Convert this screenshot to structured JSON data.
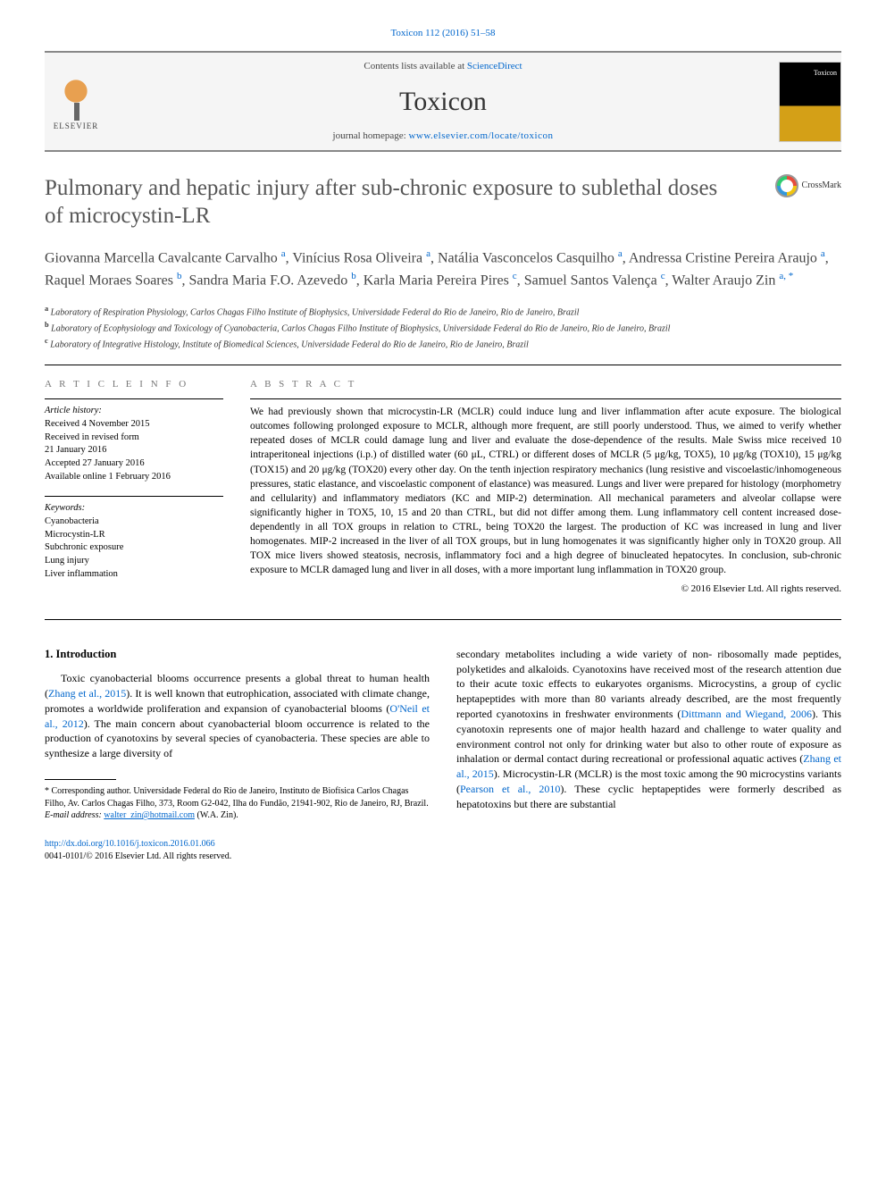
{
  "header_ref": "Toxicon 112 (2016) 51–58",
  "banner": {
    "contents_text": "Contents lists available at ",
    "contents_link": "ScienceDirect",
    "journal_name": "Toxicon",
    "homepage_text": "journal homepage: ",
    "homepage_link": "www.elsevier.com/locate/toxicon",
    "elsevier_label": "ELSEVIER"
  },
  "title": "Pulmonary and hepatic injury after sub-chronic exposure to sublethal doses of microcystin-LR",
  "crossmark_label": "CrossMark",
  "authors_html": "Giovanna Marcella Cavalcante Carvalho <sup>a</sup>, Vinícius Rosa Oliveira <sup>a</sup>, Natália Vasconcelos Casquilho <sup>a</sup>, Andressa Cristine Pereira Araujo <sup>a</sup>, Raquel Moraes Soares <sup>b</sup>, Sandra Maria F.O. Azevedo <sup>b</sup>, Karla Maria Pereira Pires <sup>c</sup>, Samuel Santos Valença <sup>c</sup>, Walter Araujo Zin <sup>a, *</sup>",
  "affiliations": {
    "a": "Laboratory of Respiration Physiology, Carlos Chagas Filho Institute of Biophysics, Universidade Federal do Rio de Janeiro, Rio de Janeiro, Brazil",
    "b": "Laboratory of Ecophysiology and Toxicology of Cyanobacteria, Carlos Chagas Filho Institute of Biophysics, Universidade Federal do Rio de Janeiro, Rio de Janeiro, Brazil",
    "c": "Laboratory of Integrative Histology, Institute of Biomedical Sciences, Universidade Federal do Rio de Janeiro, Rio de Janeiro, Brazil"
  },
  "info": {
    "heading": "A R T I C L E  I N F O",
    "history_label": "Article history:",
    "received": "Received 4 November 2015",
    "revised1": "Received in revised form",
    "revised2": "21 January 2016",
    "accepted": "Accepted 27 January 2016",
    "online": "Available online 1 February 2016",
    "kw_label": "Keywords:",
    "keywords": [
      "Cyanobacteria",
      "Microcystin-LR",
      "Subchronic exposure",
      "Lung injury",
      "Liver inflammation"
    ]
  },
  "abstract": {
    "heading": "A B S T R A C T",
    "text": "We had previously shown that microcystin-LR (MCLR) could induce lung and liver inflammation after acute exposure. The biological outcomes following prolonged exposure to MCLR, although more frequent, are still poorly understood. Thus, we aimed to verify whether repeated doses of MCLR could damage lung and liver and evaluate the dose-dependence of the results. Male Swiss mice received 10 intraperitoneal injections (i.p.) of distilled water (60 μL, CTRL) or different doses of MCLR (5 μg/kg, TOX5), 10 μg/kg (TOX10), 15 μg/kg (TOX15) and 20 μg/kg (TOX20) every other day. On the tenth injection respiratory mechanics (lung resistive and viscoelastic/inhomogeneous pressures, static elastance, and viscoelastic component of elastance) was measured. Lungs and liver were prepared for histology (morphometry and cellularity) and inflammatory mediators (KC and MIP-2) determination. All mechanical parameters and alveolar collapse were significantly higher in TOX5, 10, 15 and 20 than CTRL, but did not differ among them. Lung inflammatory cell content increased dose-dependently in all TOX groups in relation to CTRL, being TOX20 the largest. The production of KC was increased in lung and liver homogenates. MIP-2 increased in the liver of all TOX groups, but in lung homogenates it was significantly higher only in TOX20 group. All TOX mice livers showed steatosis, necrosis, inflammatory foci and a high degree of binucleated hepatocytes. In conclusion, sub-chronic exposure to MCLR damaged lung and liver in all doses, with a more important lung inflammation in TOX20 group.",
    "copyright": "© 2016 Elsevier Ltd. All rights reserved."
  },
  "body": {
    "section_heading": "1. Introduction",
    "para1_a": "Toxic cyanobacterial blooms occurrence presents a global threat to human health (",
    "cite1": "Zhang et al., 2015",
    "para1_b": "). It is well known that eutrophication, associated with climate change, promotes a worldwide proliferation and expansion of cyanobacterial blooms (",
    "cite2": "O'Neil et al., 2012",
    "para1_c": "). The main concern about cyanobacterial bloom occurrence is related to the production of cyanotoxins by several species of cyanobacteria. These species are able to synthesize a large diversity of",
    "para2_a": "secondary metabolites including a wide variety of non- ribosomally made peptides, polyketides and alkaloids. Cyanotoxins have received most of the research attention due to their acute toxic effects to eukaryotes organisms. Microcystins, a group of cyclic heptapeptides with more than 80 variants already described, are the most frequently reported cyanotoxins in freshwater environments (",
    "cite3": "Dittmann and Wiegand, 2006",
    "para2_b": "). This cyanotoxin represents one of major health hazard and challenge to water quality and environment control not only for drinking water but also to other route of exposure as inhalation or dermal contact during recreational or professional aquatic actives (",
    "cite4": "Zhang et al., 2015",
    "para2_c": "). Microcystin-LR (MCLR) is the most toxic among the 90 microcystins variants (",
    "cite5": "Pearson et al., 2010",
    "para2_d": "). These cyclic heptapeptides were formerly described as hepatotoxins but there are substantial"
  },
  "footnotes": {
    "corr": "* Corresponding author. Universidade Federal do Rio de Janeiro, Instituto de Biofísica Carlos Chagas Filho, Av. Carlos Chagas Filho, 373, Room G2-042, Ilha do Fundão, 21941-902, Rio de Janeiro, RJ, Brazil.",
    "email_label": "E-mail address: ",
    "email": "walter_zin@hotmail.com",
    "email_person": " (W.A. Zin)."
  },
  "footer": {
    "doi": "http://dx.doi.org/10.1016/j.toxicon.2016.01.066",
    "issn_line": "0041-0101/© 2016 Elsevier Ltd. All rights reserved."
  },
  "colors": {
    "link": "#0066cc",
    "text": "#000000",
    "title_gray": "#555555",
    "heading_gray": "#777777",
    "banner_bg": "#f5f5f5",
    "border": "#888888"
  }
}
